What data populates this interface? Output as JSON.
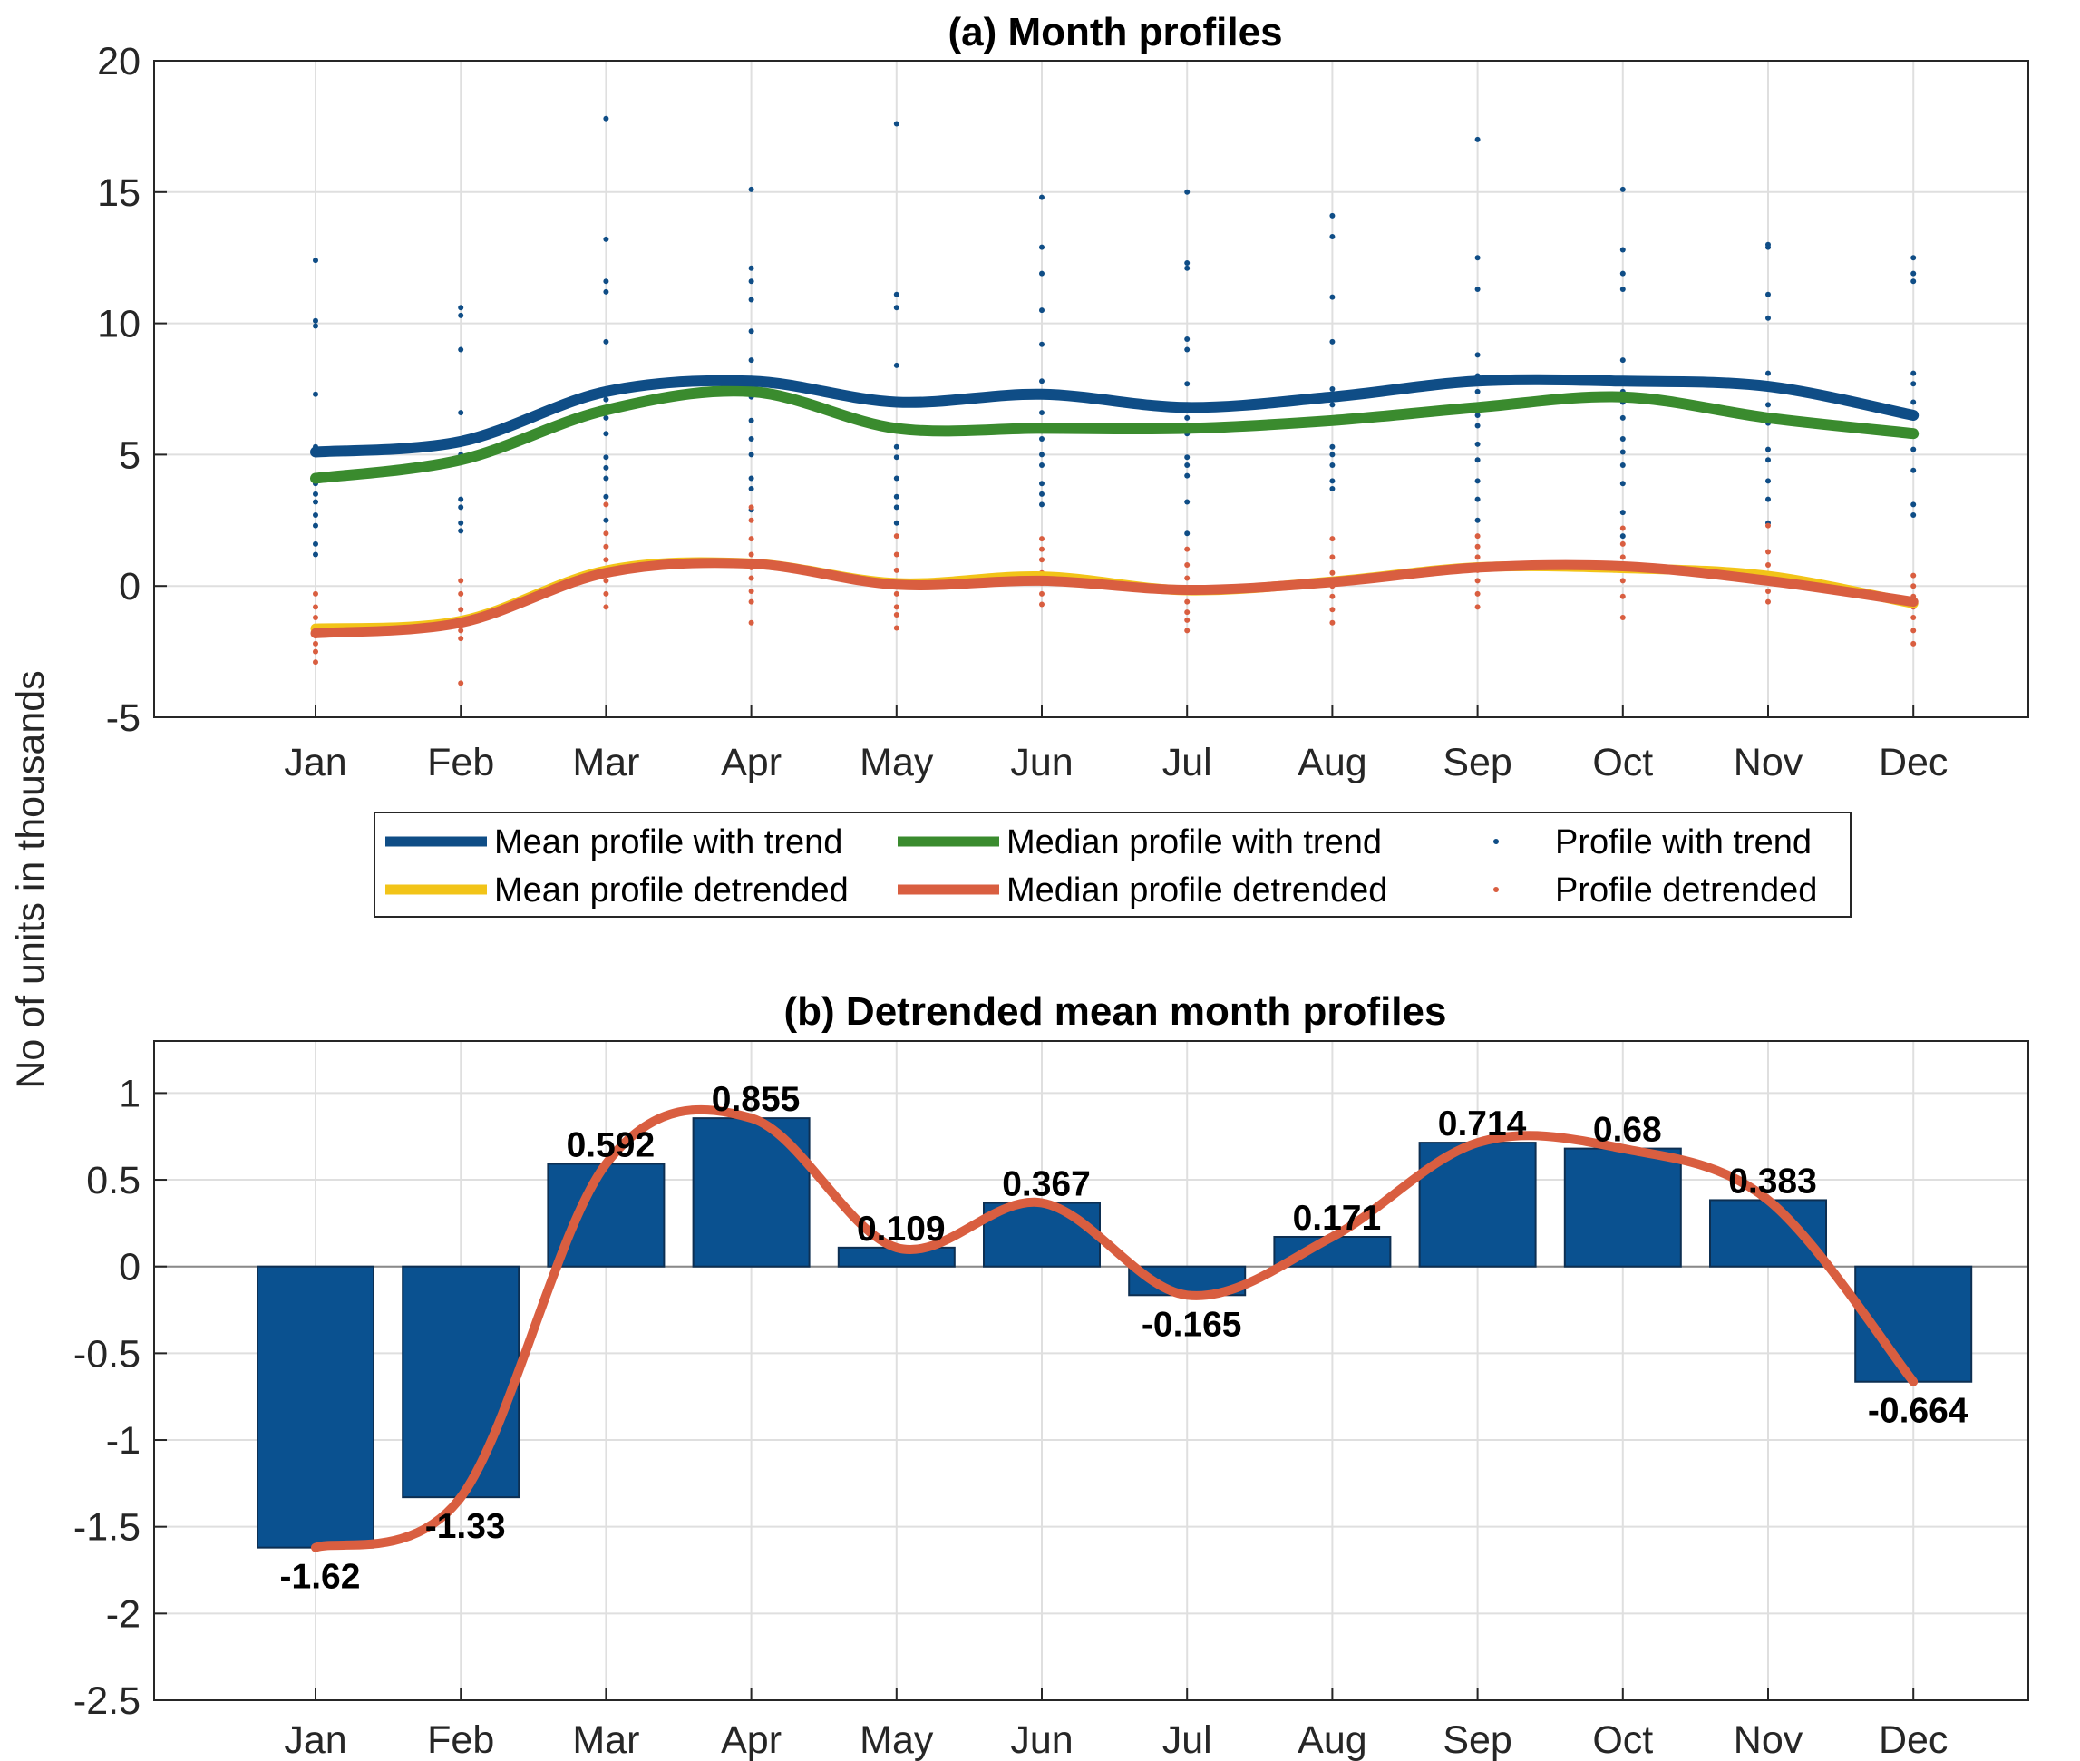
{
  "ylabel": "No of units in thousands",
  "chart_data": [
    {
      "type": "line",
      "title": "(a) Month profiles",
      "categories": [
        "Jan",
        "Feb",
        "Mar",
        "Apr",
        "May",
        "Jun",
        "Jul",
        "Aug",
        "Sep",
        "Oct",
        "Nov",
        "Dec"
      ],
      "ylim": [
        -5,
        20
      ],
      "yticks": [
        "20",
        "15",
        "10",
        "5",
        "0",
        "-5"
      ],
      "ytick_values": [
        20,
        15,
        10,
        5,
        0,
        -5
      ],
      "grid": true,
      "series": [
        {
          "name": "Mean profile with trend",
          "color": "#0f4d86",
          "style": "line",
          "values": [
            5.1,
            5.5,
            7.4,
            7.8,
            7.0,
            7.3,
            6.8,
            7.2,
            7.8,
            7.8,
            7.6,
            6.5
          ]
        },
        {
          "name": "Median profile with trend",
          "color": "#3a8b2e",
          "style": "line",
          "values": [
            4.1,
            4.8,
            6.7,
            7.4,
            6.0,
            6.0,
            6.0,
            6.3,
            6.8,
            7.2,
            6.4,
            5.8
          ]
        },
        {
          "name": "Mean profile detrended",
          "color": "#f2c418",
          "style": "line",
          "values": [
            -1.62,
            -1.33,
            0.592,
            0.855,
            0.109,
            0.367,
            -0.165,
            0.171,
            0.714,
            0.68,
            0.383,
            -0.664
          ]
        },
        {
          "name": "Median profile detrended",
          "color": "#d95e40",
          "style": "line",
          "values": [
            -1.8,
            -1.4,
            0.5,
            0.85,
            0.05,
            0.2,
            -0.15,
            0.15,
            0.7,
            0.75,
            0.2,
            -0.6
          ]
        },
        {
          "name": "Profile with trend",
          "color": "#0f4d86",
          "style": "dots",
          "points": [
            [
              12.4,
              10.1,
              9.9,
              7.3,
              5.3,
              5.0,
              4.2,
              3.9,
              3.5,
              3.2,
              2.7,
              2.3,
              1.6,
              1.2
            ],
            [
              10.6,
              10.3,
              9.0,
              6.6,
              5.0,
              4.7,
              3.3,
              3.0,
              2.4,
              2.1
            ],
            [
              17.8,
              13.2,
              11.6,
              11.2,
              9.3,
              7.1,
              6.4,
              5.8,
              4.9,
              4.5,
              4.1,
              3.4,
              2.5
            ],
            [
              15.1,
              12.1,
              11.6,
              10.9,
              9.7,
              8.6,
              7.9,
              7.2,
              6.3,
              5.6,
              5.0,
              4.1,
              3.7,
              2.9
            ],
            [
              17.6,
              11.1,
              10.6,
              8.4,
              6.9,
              6.0,
              5.3,
              4.9,
              4.1,
              3.4,
              3.0,
              2.4
            ],
            [
              14.8,
              12.9,
              11.9,
              10.5,
              9.2,
              7.8,
              6.6,
              5.9,
              5.6,
              5.0,
              4.6,
              3.9,
              3.5,
              3.1
            ],
            [
              15.0,
              12.3,
              12.1,
              9.4,
              9.0,
              7.7,
              6.9,
              6.4,
              5.8,
              4.9,
              4.6,
              4.2,
              3.2,
              2.0
            ],
            [
              14.1,
              13.3,
              11.0,
              9.3,
              7.5,
              6.9,
              5.3,
              5.0,
              4.6,
              4.0,
              3.7
            ],
            [
              17.0,
              12.5,
              11.3,
              8.8,
              8.0,
              7.4,
              6.5,
              6.1,
              5.4,
              4.8,
              4.0,
              3.3,
              2.5
            ],
            [
              15.1,
              12.8,
              11.9,
              11.3,
              8.6,
              7.4,
              7.0,
              6.4,
              5.6,
              5.1,
              4.6,
              3.9,
              2.8,
              1.9
            ],
            [
              13.0,
              12.9,
              11.1,
              10.2,
              8.1,
              6.9,
              6.2,
              5.2,
              4.8,
              4.0,
              3.3,
              2.4
            ],
            [
              12.5,
              11.9,
              11.6,
              8.1,
              7.7,
              7.0,
              6.4,
              5.9,
              5.2,
              4.4,
              3.1,
              2.7
            ]
          ]
        },
        {
          "name": "Profile detrended",
          "color": "#d95e40",
          "style": "dots",
          "points": [
            [
              -0.3,
              -0.8,
              -1.2,
              -1.6,
              -1.9,
              -2.2,
              -2.5,
              -2.9
            ],
            [
              0.2,
              -0.3,
              -0.9,
              -1.3,
              -1.7,
              -2.0,
              -3.7
            ],
            [
              3.1,
              2.0,
              1.5,
              1.0,
              0.6,
              0.2,
              -0.3,
              -0.8
            ],
            [
              3.0,
              2.5,
              1.8,
              1.2,
              0.7,
              0.3,
              -0.2,
              -0.6,
              -1.4
            ],
            [
              1.9,
              1.2,
              0.6,
              0.2,
              -0.3,
              -0.8,
              -1.1,
              -1.6
            ],
            [
              1.8,
              1.4,
              1.0,
              0.5,
              0.1,
              -0.3,
              -0.7
            ],
            [
              1.4,
              0.8,
              0.3,
              -0.2,
              -0.6,
              -1.0,
              -1.3,
              -1.7
            ],
            [
              1.8,
              1.1,
              0.5,
              0.0,
              -0.4,
              -0.9,
              -1.4
            ],
            [
              1.9,
              1.5,
              1.1,
              0.6,
              0.2,
              -0.3,
              -0.8
            ],
            [
              2.2,
              1.6,
              1.1,
              0.6,
              0.2,
              -0.4,
              -1.2
            ],
            [
              2.3,
              1.3,
              0.8,
              0.3,
              -0.2,
              -0.6
            ],
            [
              0.4,
              0.0,
              -0.4,
              -0.8,
              -1.2,
              -1.7,
              -2.2
            ]
          ]
        }
      ],
      "legend": {
        "position": "bottom",
        "entries": [
          "Mean profile with trend",
          "Median profile with trend",
          "Profile with trend",
          "Mean profile detrended",
          "Median profile detrended",
          "Profile detrended"
        ]
      }
    },
    {
      "type": "bar",
      "title": "(b) Detrended mean month profiles",
      "categories": [
        "Jan",
        "Feb",
        "Mar",
        "Apr",
        "May",
        "Jun",
        "Jul",
        "Aug",
        "Sep",
        "Oct",
        "Nov",
        "Dec"
      ],
      "values": [
        -1.62,
        -1.33,
        0.592,
        0.855,
        0.109,
        0.367,
        -0.165,
        0.171,
        0.714,
        0.68,
        0.383,
        -0.664
      ],
      "value_labels": [
        "-1.62",
        "-1.33",
        "0.592",
        "0.855",
        "0.109",
        "0.367",
        "-0.165",
        "0.171",
        "0.714",
        "0.68",
        "0.383",
        "-0.664"
      ],
      "ylim": [
        -2.5,
        1.3
      ],
      "yticks": [
        "1",
        "0.5",
        "0",
        "-0.5",
        "-1",
        "-1.5",
        "-2",
        "-2.5"
      ],
      "ytick_values": [
        1,
        0.5,
        0,
        -0.5,
        -1,
        -1.5,
        -2,
        -2.5
      ],
      "bar_color": "#0a5190",
      "curve_color": "#d95e40",
      "grid": true
    }
  ]
}
